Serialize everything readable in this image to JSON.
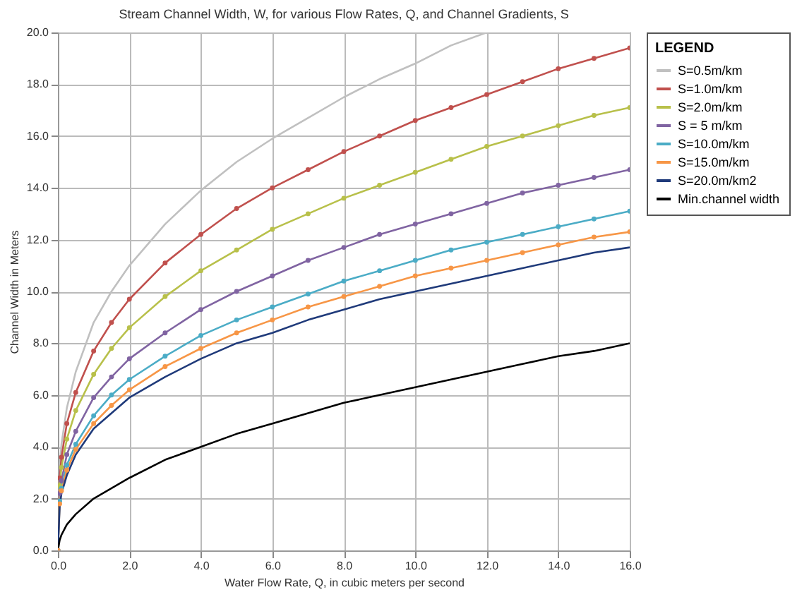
{
  "chart_data": {
    "type": "line",
    "title": "Stream Channel Width, W, for various Flow Rates, Q, and Channel Gradients, S",
    "xlabel": "Water Flow Rate, Q, in cubic meters per second",
    "ylabel": "Channel Width in Meters",
    "legend_title": "LEGEND",
    "legend": "right",
    "grid": true,
    "x": [
      0,
      0.05,
      0.1,
      0.25,
      0.5,
      1,
      1.5,
      2,
      3,
      4,
      5,
      6,
      7,
      8,
      9,
      10,
      11,
      12,
      13,
      14,
      15,
      16
    ],
    "xlim": [
      0,
      16
    ],
    "xticks": [
      {
        "value": 0,
        "label": "0.0"
      },
      {
        "value": 2,
        "label": "2.0"
      },
      {
        "value": 4,
        "label": "4.0"
      },
      {
        "value": 6,
        "label": "6.0"
      },
      {
        "value": 8,
        "label": "8.0"
      },
      {
        "value": 10,
        "label": "10.0"
      },
      {
        "value": 12,
        "label": "12.0"
      },
      {
        "value": 14,
        "label": "14.0"
      },
      {
        "value": 16,
        "label": "16.0"
      }
    ],
    "ylim": [
      0,
      20
    ],
    "yticks": [
      {
        "value": 0,
        "label": "0.0"
      },
      {
        "value": 2,
        "label": "2.0"
      },
      {
        "value": 4,
        "label": "4.0"
      },
      {
        "value": 6,
        "label": "6.0"
      },
      {
        "value": 8,
        "label": "8.0"
      },
      {
        "value": 10,
        "label": "10.0"
      },
      {
        "value": 12,
        "label": "12.0"
      },
      {
        "value": 14,
        "label": "14.0"
      },
      {
        "value": 16,
        "label": "16.0"
      },
      {
        "value": 18,
        "label": "18.0"
      },
      {
        "value": 20,
        "label": "20.0"
      }
    ],
    "series": [
      {
        "name": "S=0.5m/km",
        "color": "#c0c0c0",
        "marker": "none",
        "x": [
          0,
          0.05,
          0.1,
          0.25,
          0.5,
          1,
          1.5,
          2,
          3,
          4,
          5,
          6,
          7,
          8,
          9,
          10,
          11,
          12
        ],
        "values": [
          0,
          3.2,
          4.1,
          5.5,
          6.9,
          8.8,
          10.0,
          11.0,
          12.6,
          13.9,
          15.0,
          15.9,
          16.7,
          17.5,
          18.2,
          18.8,
          19.5,
          20.0
        ]
      },
      {
        "name": "S=1.0m/km",
        "color": "#c0504d",
        "marker": "circle",
        "values": [
          0,
          2.8,
          3.6,
          4.9,
          6.1,
          7.7,
          8.8,
          9.7,
          11.1,
          12.2,
          13.2,
          14.0,
          14.7,
          15.4,
          16.0,
          16.6,
          17.1,
          17.6,
          18.1,
          18.6,
          19.0,
          19.4
        ]
      },
      {
        "name": "S=2.0m/km",
        "color": "#b8c04a",
        "marker": "circle",
        "values": [
          0,
          2.5,
          3.2,
          4.3,
          5.4,
          6.8,
          7.8,
          8.6,
          9.8,
          10.8,
          11.6,
          12.4,
          13.0,
          13.6,
          14.1,
          14.6,
          15.1,
          15.6,
          16.0,
          16.4,
          16.8,
          17.1
        ]
      },
      {
        "name": "S = 5 m/km",
        "color": "#8064a2",
        "marker": "circle",
        "values": [
          0,
          2.2,
          2.7,
          3.7,
          4.6,
          5.9,
          6.7,
          7.4,
          8.4,
          9.3,
          10.0,
          10.6,
          11.2,
          11.7,
          12.2,
          12.6,
          13.0,
          13.4,
          13.8,
          14.1,
          14.4,
          14.7
        ]
      },
      {
        "name": "S=10.0m/km",
        "color": "#4bacc6",
        "marker": "circle",
        "values": [
          0,
          1.9,
          2.4,
          3.3,
          4.1,
          5.2,
          6.0,
          6.6,
          7.5,
          8.3,
          8.9,
          9.4,
          9.9,
          10.4,
          10.8,
          11.2,
          11.6,
          11.9,
          12.2,
          12.5,
          12.8,
          13.1
        ]
      },
      {
        "name": "S=15.0m/km",
        "color": "#f79646",
        "marker": "circle",
        "values": [
          0,
          1.8,
          2.3,
          3.1,
          3.9,
          4.9,
          5.6,
          6.2,
          7.1,
          7.8,
          8.4,
          8.9,
          9.4,
          9.8,
          10.2,
          10.6,
          10.9,
          11.2,
          11.5,
          11.8,
          12.1,
          12.3
        ]
      },
      {
        "name": "S=20.0m/km2",
        "color": "#1f3a7a",
        "marker": "none",
        "values": [
          0,
          1.7,
          2.2,
          2.9,
          3.7,
          4.7,
          5.3,
          5.9,
          6.7,
          7.4,
          8.0,
          8.4,
          8.9,
          9.3,
          9.7,
          10.0,
          10.3,
          10.6,
          10.9,
          11.2,
          11.5,
          11.7
        ]
      },
      {
        "name": "Min.channel width",
        "color": "#000000",
        "marker": "none",
        "values": [
          0,
          0.4,
          0.6,
          1.0,
          1.4,
          2.0,
          2.4,
          2.8,
          3.5,
          4.0,
          4.5,
          4.9,
          5.3,
          5.7,
          6.0,
          6.3,
          6.6,
          6.9,
          7.2,
          7.5,
          7.7,
          8.0
        ]
      }
    ]
  }
}
